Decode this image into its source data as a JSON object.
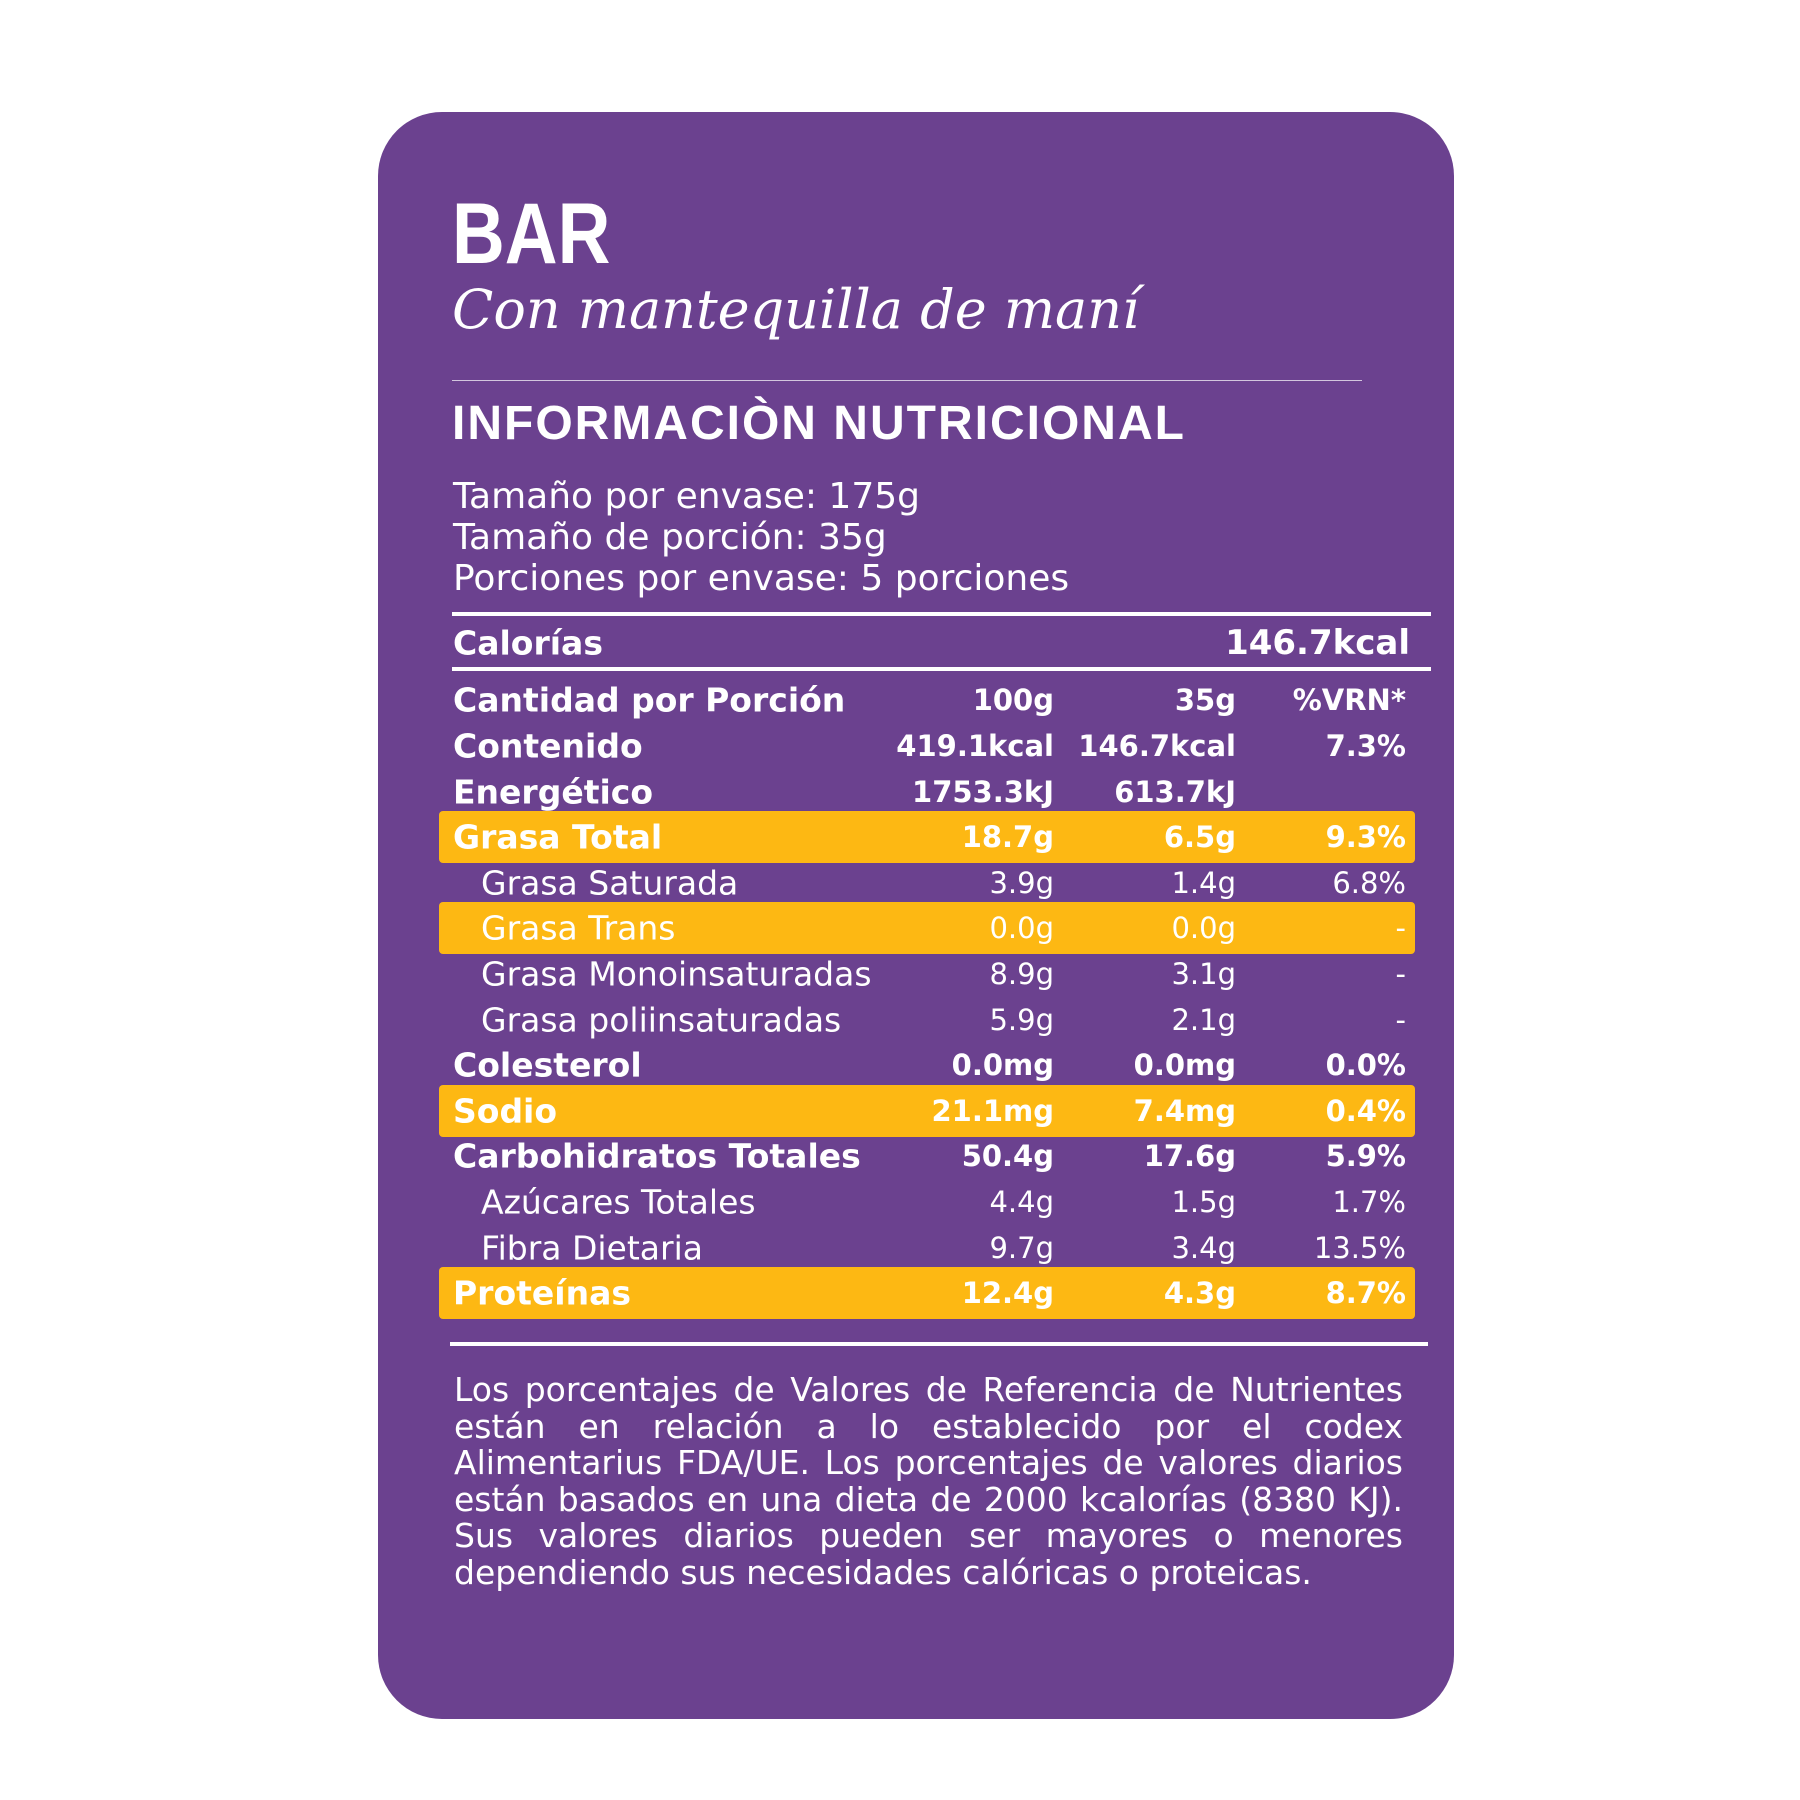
{
  "header": {
    "title": "BAR",
    "subtitle": "Con mantequilla de maní"
  },
  "section_title": "INFORMACIÒN NUTRICIONAL",
  "serving": [
    "Tamaño por envase: 175g",
    "Tamaño de porción: 35g",
    "Porciones por envase: 5 porciones"
  ],
  "calories": {
    "label": "Calorías",
    "value": "146.7kcal"
  },
  "table": {
    "header": {
      "label": "Cantidad por Porción",
      "v100": "100g",
      "v35": "35g",
      "vrn": "%VRN*"
    },
    "rows": [
      {
        "label": "Contenido",
        "v100": "419.1kcal",
        "v35": "146.7kcal",
        "vrn": "7.3%",
        "bold": true
      },
      {
        "label": "Energético",
        "v100": "1753.3kJ",
        "v35": "613.7kJ",
        "bold": true
      },
      {
        "label": "Grasa Total",
        "v100": "18.7g",
        "v35": "6.5g",
        "vrn": "9.3%",
        "bold": true,
        "highlight": true
      },
      {
        "label": "Grasa Saturada",
        "v100": "3.9g",
        "v35": "1.4g",
        "vrn": "6.8%",
        "indent": true
      },
      {
        "label": "Grasa Trans",
        "v100": "0.0g",
        "v35": "0.0g",
        "vrn": "-",
        "indent": true,
        "highlight": true
      },
      {
        "label": "Grasa Monoinsaturadas",
        "v100": "8.9g",
        "v35": "3.1g",
        "vrn": "-",
        "indent": true
      },
      {
        "label": "Grasa poliinsaturadas",
        "v100": "5.9g",
        "v35": "2.1g",
        "vrn": "-",
        "indent": true
      },
      {
        "label": "Colesterol",
        "v100": "0.0mg",
        "v35": "0.0mg",
        "vrn": "0.0%",
        "bold": true
      },
      {
        "label": "Sodio",
        "v100": "21.1mg",
        "v35": "7.4mg",
        "vrn": "0.4%",
        "bold": true,
        "highlight": true
      },
      {
        "label": "Carbohidratos Totales",
        "v100": "50.4g",
        "v35": "17.6g",
        "vrn": "5.9%",
        "bold": true
      },
      {
        "label": "Azúcares Totales",
        "v100": "4.4g",
        "v35": "1.5g",
        "vrn": "1.7%",
        "indent": true
      },
      {
        "label": "Fibra Dietaria",
        "v100": "9.7g",
        "v35": "3.4g",
        "vrn": "13.5%",
        "indent": true
      },
      {
        "label": "Proteínas",
        "v100": "12.4g",
        "v35": "4.3g",
        "vrn": "8.7%",
        "bold": true,
        "highlight": true
      }
    ]
  },
  "footnote": "Los porcentajes de Valores de Referencia de Nutrientes están en relación a lo establecido por el codex Alimentarius FDA/UE. Los porcentajes de valores diarios están basados en una dieta de 2000 kcalorías (8380 KJ). Sus valores diarios pueden ser mayores o menores dependiendo sus necesidades calóricas o proteicas."
}
